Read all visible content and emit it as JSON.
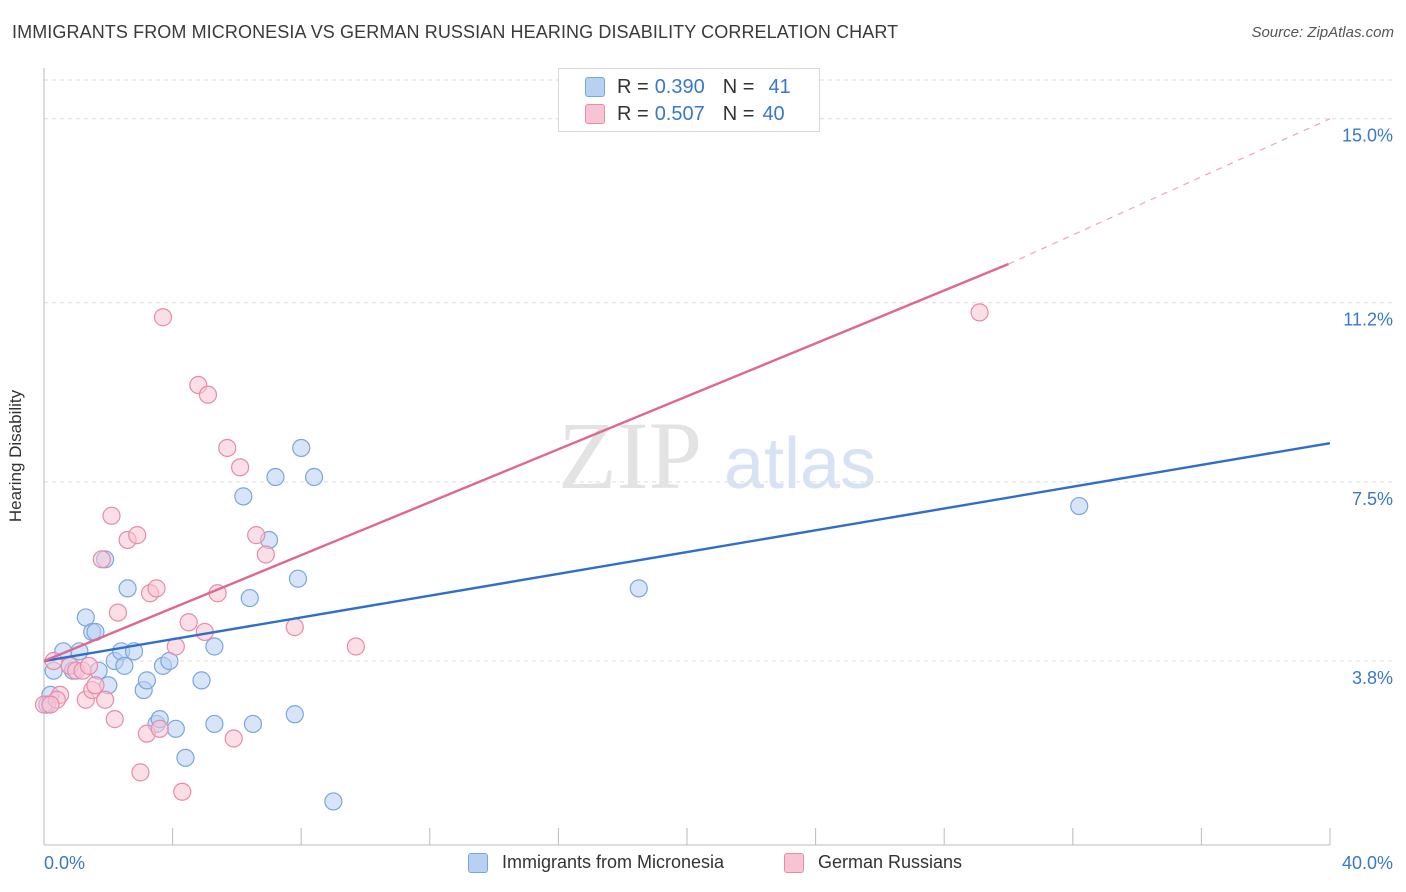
{
  "header": {
    "title": "IMMIGRANTS FROM MICRONESIA VS GERMAN RUSSIAN HEARING DISABILITY CORRELATION CHART",
    "source": "Source: ZipAtlas.com"
  },
  "watermark": {
    "zip": "ZIP",
    "atlas": "atlas"
  },
  "legend": {
    "rows": [
      {
        "r_label": "R =",
        "r_value": "0.390",
        "n_label": "N =",
        "n_value": "41"
      },
      {
        "r_label": "R =",
        "r_value": "0.507",
        "n_label": "N =",
        "n_value": "40"
      }
    ]
  },
  "colors": {
    "blue_fill": "#b8d0f2",
    "blue_stroke": "#7aa6df",
    "blue_line": "#2f6fcb",
    "pink_fill": "#f7c4d3",
    "pink_stroke": "#e98aa8",
    "pink_line": "#e0678f",
    "axis_text": "#3a78c9",
    "grid": "#dcdcdc"
  },
  "chart_data": {
    "type": "scatter",
    "xlabel": "",
    "ylabel": "Hearing Disability",
    "xlim": [
      0,
      40
    ],
    "ylim": [
      0,
      15.8
    ],
    "x_tick_labels": [
      "0.0%",
      "40.0%"
    ],
    "y_ticks": [
      3.8,
      7.5,
      11.2,
      15.0
    ],
    "y_tick_labels": [
      "3.8%",
      "7.5%",
      "11.2%",
      "15.0%"
    ],
    "grid": true,
    "legend_position": "top-center",
    "series": [
      {
        "name": "Immigrants from Micronesia",
        "color": "#b8d0f2",
        "points": [
          [
            0.3,
            3.6
          ],
          [
            0.6,
            4.0
          ],
          [
            0.8,
            3.7
          ],
          [
            0.9,
            3.6
          ],
          [
            1.1,
            4.0
          ],
          [
            1.3,
            4.7
          ],
          [
            1.5,
            4.4
          ],
          [
            1.6,
            4.4
          ],
          [
            1.7,
            3.6
          ],
          [
            1.9,
            5.9
          ],
          [
            2.0,
            3.3
          ],
          [
            2.2,
            3.8
          ],
          [
            2.4,
            4.0
          ],
          [
            2.5,
            3.7
          ],
          [
            2.6,
            5.3
          ],
          [
            2.8,
            4.0
          ],
          [
            3.1,
            3.2
          ],
          [
            3.2,
            3.4
          ],
          [
            3.5,
            2.5
          ],
          [
            3.6,
            2.6
          ],
          [
            3.7,
            3.7
          ],
          [
            3.9,
            3.8
          ],
          [
            4.1,
            2.4
          ],
          [
            4.4,
            1.8
          ],
          [
            4.9,
            3.4
          ],
          [
            5.3,
            2.5
          ],
          [
            5.3,
            4.1
          ],
          [
            6.2,
            7.2
          ],
          [
            6.4,
            5.1
          ],
          [
            6.5,
            2.5
          ],
          [
            7.0,
            6.3
          ],
          [
            7.2,
            7.6
          ],
          [
            7.8,
            2.7
          ],
          [
            7.9,
            5.5
          ],
          [
            8.0,
            8.2
          ],
          [
            8.4,
            7.6
          ],
          [
            9.0,
            0.9
          ],
          [
            18.5,
            5.3
          ],
          [
            32.2,
            7.0
          ],
          [
            0.2,
            3.1
          ],
          [
            0.1,
            2.9
          ]
        ]
      },
      {
        "name": "German Russians",
        "color": "#f7c4d3",
        "points": [
          [
            0.0,
            2.9
          ],
          [
            0.3,
            3.8
          ],
          [
            0.5,
            3.1
          ],
          [
            0.8,
            3.7
          ],
          [
            1.0,
            3.6
          ],
          [
            1.2,
            3.6
          ],
          [
            1.3,
            3.0
          ],
          [
            1.4,
            3.7
          ],
          [
            1.5,
            3.2
          ],
          [
            1.6,
            3.3
          ],
          [
            1.8,
            5.9
          ],
          [
            1.9,
            3.0
          ],
          [
            2.1,
            6.8
          ],
          [
            2.2,
            2.6
          ],
          [
            2.3,
            4.8
          ],
          [
            2.6,
            6.3
          ],
          [
            2.9,
            6.4
          ],
          [
            3.0,
            1.5
          ],
          [
            3.2,
            2.3
          ],
          [
            3.3,
            5.2
          ],
          [
            3.5,
            5.3
          ],
          [
            3.6,
            2.4
          ],
          [
            3.7,
            10.9
          ],
          [
            4.1,
            4.1
          ],
          [
            4.3,
            1.1
          ],
          [
            4.5,
            4.6
          ],
          [
            4.8,
            9.5
          ],
          [
            5.0,
            4.4
          ],
          [
            5.1,
            9.3
          ],
          [
            5.4,
            5.2
          ],
          [
            5.7,
            8.2
          ],
          [
            5.9,
            2.2
          ],
          [
            6.1,
            7.8
          ],
          [
            6.6,
            6.4
          ],
          [
            6.9,
            6.0
          ],
          [
            7.8,
            4.5
          ],
          [
            9.7,
            4.1
          ],
          [
            29.1,
            11.0
          ],
          [
            0.4,
            3.0
          ],
          [
            0.2,
            2.9
          ]
        ]
      }
    ],
    "trendlines": [
      {
        "series": "Immigrants from Micronesia",
        "x": [
          0,
          40
        ],
        "y": [
          3.8,
          8.3
        ]
      },
      {
        "series": "German Russians",
        "x": [
          0,
          30
        ],
        "y": [
          3.8,
          12.0
        ],
        "dashed_extension_x": [
          30,
          40
        ],
        "dashed_extension_y": [
          12.0,
          15.0
        ]
      }
    ]
  }
}
